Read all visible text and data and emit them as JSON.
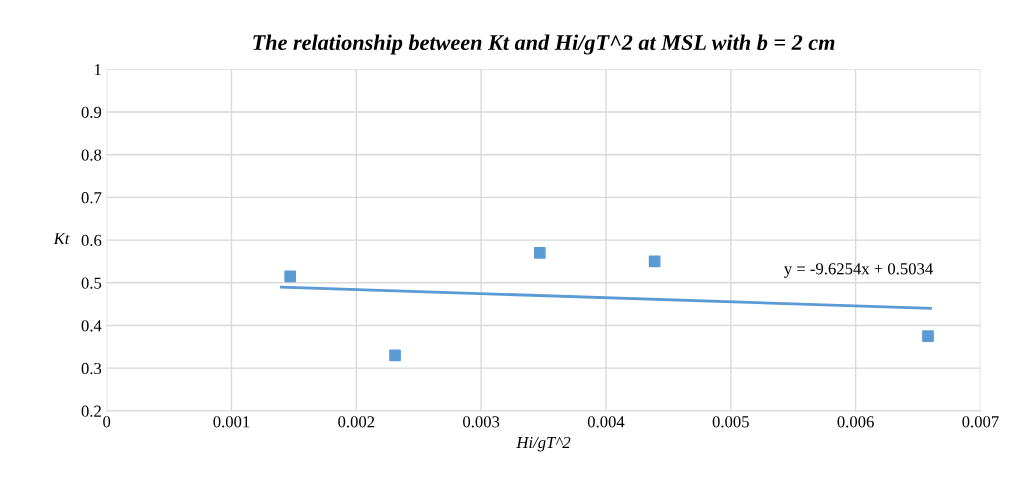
{
  "chart_data": {
    "type": "scatter",
    "title": "The relationship between Kt and Hi/gT^2 at MSL with b = 2 cm",
    "xlabel": "Hi/gT^2",
    "ylabel": "Kt",
    "series": [
      {
        "color": "#5b9bd5",
        "x": [
          0.00147,
          0.00231,
          0.00347,
          0.00439,
          0.00658
        ],
        "values": [
          0.515,
          0.33,
          0.57,
          0.55,
          0.375
        ],
        "marker": "square"
      },
      {
        "type": "line",
        "color": "#5b9bd5",
        "x": [
          0.0014,
          0.0066
        ],
        "values": [
          0.49,
          0.44
        ],
        "marker": "none"
      }
    ],
    "annotations": [
      "y = -9.6254x + 0.5034"
    ],
    "xlim": [
      0,
      0.007
    ],
    "xticks": [
      0,
      0.001,
      0.002,
      0.003,
      0.004,
      0.005,
      0.006,
      0.007
    ],
    "ylim": [
      0.2,
      1
    ],
    "yticks": [
      0.2,
      0.3,
      0.4,
      0.5,
      0.6,
      0.7,
      0.8,
      0.9,
      1
    ],
    "grid": true,
    "legend": false
  }
}
